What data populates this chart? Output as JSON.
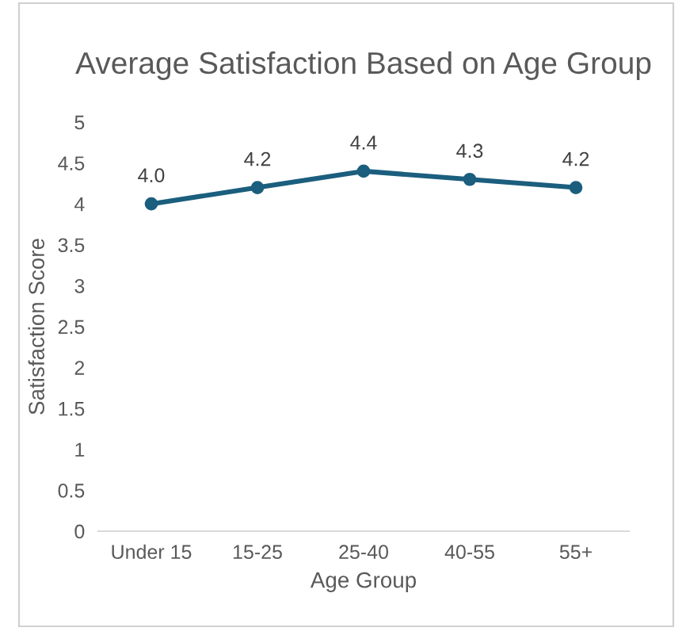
{
  "chart_data": {
    "type": "line",
    "title": "Average Satisfaction Based on Age Group",
    "xlabel": "Age Group",
    "ylabel": "Satisfaction Score",
    "categories": [
      "Under 15",
      "15-25",
      "25-40",
      "40-55",
      "55+"
    ],
    "series": [
      {
        "color": "#1b5e7e",
        "values": [
          4.0,
          4.2,
          4.4,
          4.3,
          4.2
        ],
        "value_labels": [
          "4.0",
          "4.2",
          "4.4",
          "4.3",
          "4.2"
        ]
      }
    ],
    "ylim": [
      0,
      5
    ],
    "yticks": [
      0,
      0.5,
      1,
      1.5,
      2,
      2.5,
      3,
      3.5,
      4,
      4.5,
      5
    ],
    "marker": "circle",
    "line_style": "solid",
    "grid": false,
    "legend": false
  }
}
